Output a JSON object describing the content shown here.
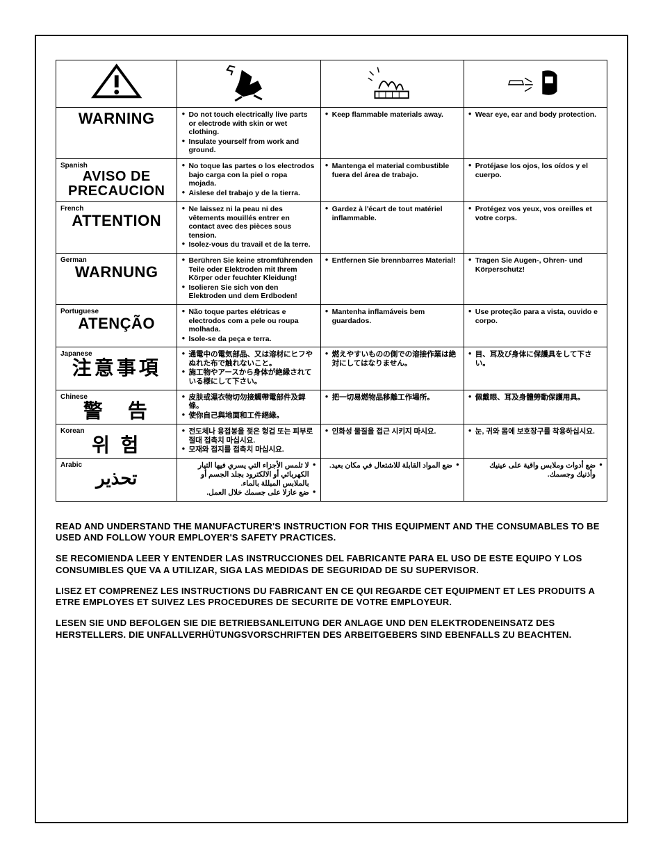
{
  "icons": [
    "caution",
    "electric-shock",
    "fire",
    "eye-protection"
  ],
  "rows": [
    {
      "lang_label": "",
      "warn_word": "WARNING",
      "warn_class": "",
      "col2": [
        "Do not touch electrically live parts or electrode with skin or wet clothing.",
        "Insulate yourself from work and ground."
      ],
      "col3": [
        "Keep flammable materials away."
      ],
      "col4": [
        "Wear eye, ear and body protection."
      ]
    },
    {
      "lang_label": "Spanish",
      "warn_word": "AVISO DE PRECAUCION",
      "warn_class": "small",
      "col2": [
        "No toque las partes o los electrodos bajo carga con la piel o ropa mojada.",
        "Aislese del trabajo y de la tierra."
      ],
      "col3": [
        "Mantenga el material combustible fuera del área de trabajo."
      ],
      "col4": [
        "Protéjase los ojos, los oídos y el cuerpo."
      ]
    },
    {
      "lang_label": "French",
      "warn_word": "ATTENTION",
      "warn_class": "",
      "col2": [
        "Ne laissez ni la peau ni des vêtements mouillés entrer en contact avec des pièces sous tension.",
        "Isolez-vous du travail et de la terre."
      ],
      "col3": [
        "Gardez à l'écart de tout matériel inflammable."
      ],
      "col4": [
        "Protégez vos yeux, vos oreilles et votre corps."
      ]
    },
    {
      "lang_label": "German",
      "warn_word": "WARNUNG",
      "warn_class": "",
      "col2": [
        "Berühren Sie keine stromführenden Teile oder Elektroden mit Ihrem Körper oder feuchter Kleidung!",
        "Isolieren Sie sich von den Elektroden und dem Erdboden!"
      ],
      "col3": [
        "Entfernen Sie brennbarres Material!"
      ],
      "col4": [
        "Tragen Sie Augen-, Ohren- und Körperschutz!"
      ]
    },
    {
      "lang_label": "Portuguese",
      "warn_word": "ATENÇÃO",
      "warn_class": "",
      "col2": [
        "Não toque partes elétricas e electrodos com a pele ou roupa molhada.",
        "Isole-se da peça e terra."
      ],
      "col3": [
        "Mantenha inflamáveis bem guardados."
      ],
      "col4": [
        "Use proteção para a vista, ouvido e corpo."
      ]
    },
    {
      "lang_label": "Japanese",
      "warn_word": "注意事項",
      "warn_class": "cjk",
      "col2": [
        "通電中の電気部品、又は溶材にヒフやぬれた布で触れないこと。",
        "施工物やアースから身体が絶縁されている様にして下さい。"
      ],
      "col3": [
        "燃えやすいものの側での溶接作業は絶対にしてはなりません。"
      ],
      "col4": [
        "目、耳及び身体に保護具をして下さい。"
      ]
    },
    {
      "lang_label": "Chinese",
      "warn_word": "警　告",
      "warn_class": "cjk",
      "col2": [
        "皮肤或濕衣物切勿接觸帶電部件及銲條。",
        "使你自己與地面和工件絕緣。"
      ],
      "col3": [
        "把一切易燃物品移離工作場所。"
      ],
      "col4": [
        "佩戴眼、耳及身體勞動保護用具。"
      ]
    },
    {
      "lang_label": "Korean",
      "warn_word": "위 험",
      "warn_class": "cjk",
      "col2": [
        "전도체나 용접봉을 젖은 헝겁 또는 피부로 절대 접촉치 마십시요.",
        "모재와 접지를 접촉치 마십시요."
      ],
      "col3": [
        "인화성 물질을 접근 시키지 마시요."
      ],
      "col4": [
        "눈, 귀와 몸에 보호장구를 착용하십시요."
      ]
    },
    {
      "lang_label": "Arabic",
      "warn_word": "تحذير",
      "warn_class": "ar",
      "rtl": true,
      "col2": [
        "لا تلمس الأجزاء التي يسري فيها التيار الكهربائي أو الالكترود بجلد الجسم أو بالملابس المبللة بالماء.",
        "ضع عازلا على جسمك خلال العمل."
      ],
      "col3": [
        "ضع المواد القابلة للاشتعال في مكان بعيد."
      ],
      "col4": [
        "ضع أدوات وملابس واقية على عينيك وأذنيك وجسمك."
      ]
    }
  ],
  "footer": [
    "READ AND UNDERSTAND THE MANUFACTURER'S INSTRUCTION FOR THIS EQUIPMENT AND THE CONSUMABLES TO BE USED AND FOLLOW YOUR EMPLOYER'S SAFETY PRACTICES.",
    "SE RECOMIENDA LEER Y ENTENDER LAS INSTRUCCIONES DEL FABRICANTE PARA EL USO DE ESTE EQUIPO Y LOS CONSUMIBLES QUE VA A UTILIZAR, SIGA LAS MEDIDAS DE SEGURIDAD DE SU SUPERVISOR.",
    "LISEZ ET COMPRENEZ LES INSTRUCTIONS DU FABRICANT EN CE QUI REGARDE CET EQUIPMENT ET LES PRODUITS A ETRE EMPLOYES ET SUIVEZ LES PROCEDURES DE SECURITE DE VOTRE EMPLOYEUR.",
    "LESEN SIE UND BEFOLGEN SIE DIE BETRIEBSANLEITUNG DER ANLAGE UND DEN ELEKTRODENEINSATZ DES HERSTELLERS. DIE UNFALLVERHÜTUNGSVORSCHRIFTEN DES ARBEITGEBERS SIND EBENFALLS ZU BEACHTEN."
  ],
  "colors": {
    "fg": "#000000",
    "bg": "#ffffff"
  }
}
